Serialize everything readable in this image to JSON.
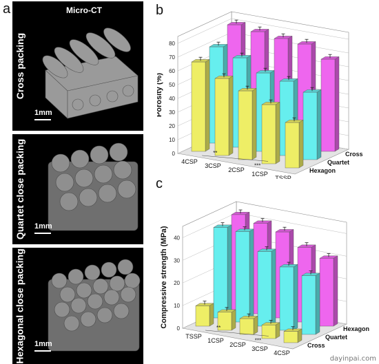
{
  "panels": {
    "a": "a",
    "b": "b",
    "c": "c"
  },
  "micro_ct": {
    "header": "Micro-CT",
    "scale": "1mm",
    "rows": [
      {
        "label": "Cross packing"
      },
      {
        "label": "Quartet close packing"
      },
      {
        "label": "Hexagonal close packing"
      }
    ]
  },
  "watermark": "dayinpai.com",
  "chart_data": [
    {
      "type": "bar",
      "title": "",
      "ylabel": "Porosity (%)",
      "ylim": [
        0,
        85
      ],
      "yticks": [
        0,
        10,
        20,
        30,
        40,
        50,
        60,
        70,
        80
      ],
      "categories": [
        "4CSP",
        "3CSP",
        "2CSP",
        "1CSP",
        "TSSP"
      ],
      "depth_categories": [
        "Hexagon",
        "Quartet",
        "Cross"
      ],
      "series": [
        {
          "name": "Cross",
          "color": "#ee66ee",
          "values": [
            80,
            78,
            76,
            75,
            67
          ]
        },
        {
          "name": "Quartet",
          "color": "#66eeee",
          "values": [
            70,
            65,
            57,
            54,
            49
          ]
        },
        {
          "name": "Hexagon",
          "color": "#eeee66",
          "values": [
            65,
            56,
            50,
            43,
            33
          ]
        }
      ],
      "annotations": [
        "**",
        "***"
      ]
    },
    {
      "type": "bar",
      "title": "",
      "ylabel": "Compressive strength (MPa)",
      "ylim": [
        0,
        45
      ],
      "yticks": [
        0,
        10,
        20,
        30,
        40
      ],
      "categories": [
        "TSSP",
        "1CSP",
        "2CSP",
        "3CSP",
        "4CSP"
      ],
      "depth_categories": [
        "Cross",
        "Quartet",
        "Hexagon"
      ],
      "series": [
        {
          "name": "Hexagon",
          "color": "#ee66ee",
          "values": [
            42,
            40,
            38,
            33,
            30
          ]
        },
        {
          "name": "Quartet",
          "color": "#66eeee",
          "values": [
            40,
            40,
            33,
            28,
            26
          ]
        },
        {
          "name": "Cross",
          "color": "#eeee66",
          "values": [
            9,
            8,
            7,
            6,
            5
          ]
        }
      ],
      "annotations": [
        "**",
        "***"
      ]
    }
  ]
}
